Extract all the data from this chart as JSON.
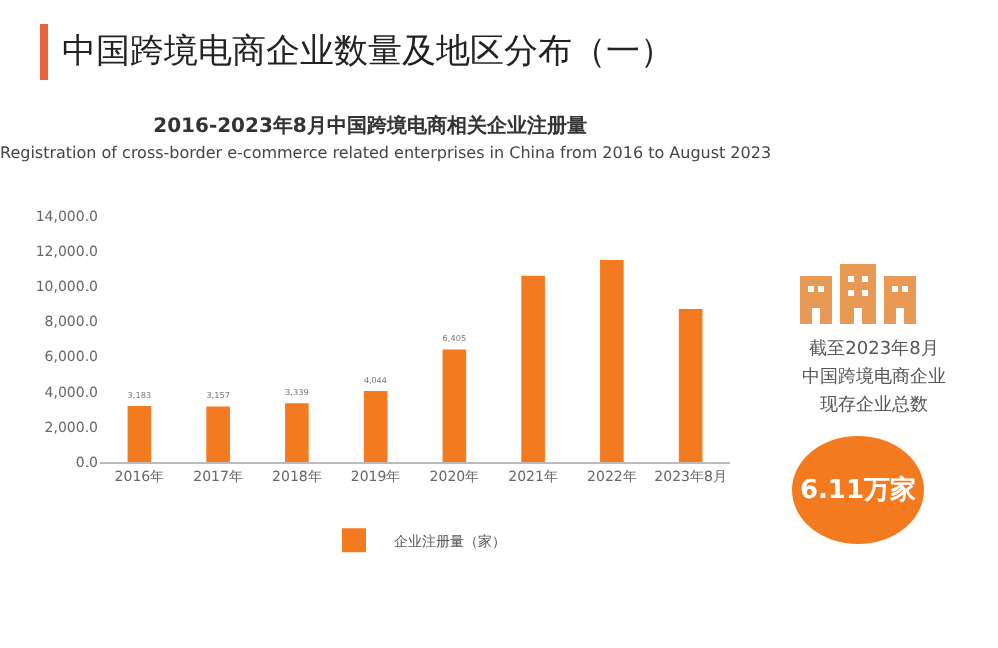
{
  "chart_data": {
    "type": "bar",
    "title": "中国跨境电商企业数量及地区分布（一）",
    "subtitle": "2016-2023年8月中国跨境电商相关企业注册量",
    "annotations": [
      "Registration of cross-border e-commerce related enterprises in China from 2016 to August 2023",
      "截至2023年8月",
      "中国跨境电商企业",
      "现存企业总数",
      "6.11万家"
    ],
    "categories": [
      "2016年",
      "2017年",
      "2018年",
      "2019年",
      "2020年",
      "2021年",
      "2022年",
      "2023年8月"
    ],
    "series": [
      {
        "name": "企业注册量（家）",
        "color": "#f47a20",
        "values": [
          3183,
          3157,
          3339,
          4044,
          6405,
          10600,
          11500,
          8700
        ],
        "value_labels": [
          "3,183",
          "3,157",
          "3,339",
          "4,044",
          "6,405",
          null,
          null,
          null
        ]
      }
    ],
    "ylim": [
      0,
      14000
    ],
    "yticks": [
      {
        "value": 0,
        "label": "0.0"
      },
      {
        "value": 2000,
        "label": "2,000.0"
      },
      {
        "value": 4000,
        "label": "4,000.0"
      },
      {
        "value": 6000,
        "label": "6,000.0"
      },
      {
        "value": 8000,
        "label": "8,000.0"
      },
      {
        "value": 10000,
        "label": "10,000.0"
      },
      {
        "value": 12000,
        "label": "12,000.0"
      },
      {
        "value": 14000,
        "label": "14,000.0"
      }
    ],
    "grid": false,
    "legend": "bottom"
  }
}
